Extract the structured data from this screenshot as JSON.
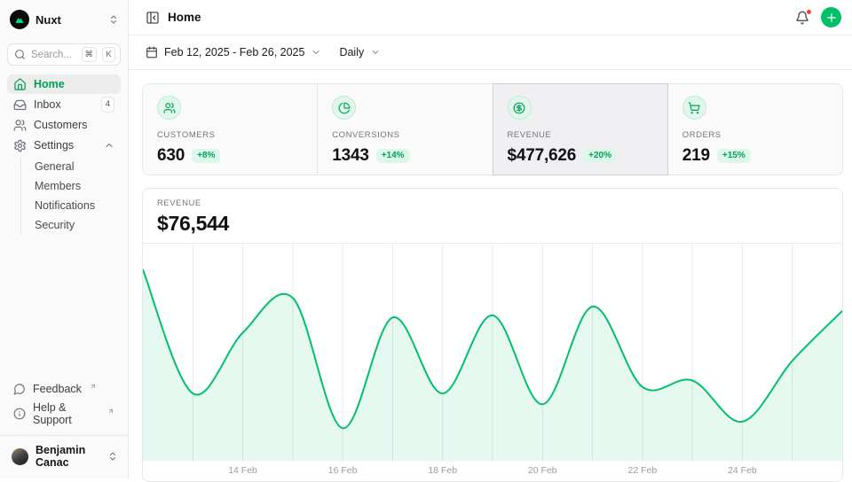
{
  "sidebar": {
    "workspace_label": "Nuxt",
    "search": {
      "placeholder": "Search...",
      "kbd_cmd": "⌘",
      "kbd_k": "K"
    },
    "nav": {
      "home": "Home",
      "inbox": "Inbox",
      "inbox_badge": "4",
      "customers": "Customers",
      "settings": "Settings",
      "settings_children": {
        "general": "General",
        "members": "Members",
        "notifications": "Notifications",
        "security": "Security"
      }
    },
    "footer": {
      "feedback": "Feedback",
      "help": "Help & Support"
    },
    "user": {
      "name": "Benjamin Canac"
    }
  },
  "header": {
    "title": "Home"
  },
  "toolbar": {
    "date_range": "Feb 12, 2025 - Feb 26, 2025",
    "granularity": "Daily"
  },
  "stats": {
    "customers": {
      "label": "CUSTOMERS",
      "value": "630",
      "delta": "+8%",
      "icon": "users-icon"
    },
    "conversions": {
      "label": "CONVERSIONS",
      "value": "1343",
      "delta": "+14%",
      "icon": "pie-chart-icon"
    },
    "revenue": {
      "label": "REVENUE",
      "value": "$477,626",
      "delta": "+20%",
      "icon": "circle-dollar-icon",
      "highlighted": true
    },
    "orders": {
      "label": "ORDERS",
      "value": "219",
      "delta": "+15%",
      "icon": "shopping-cart-icon"
    }
  },
  "chart_data": {
    "type": "area",
    "title": "REVENUE",
    "displayed_total": "$76,544",
    "x": [
      "12 Feb",
      "13 Feb",
      "14 Feb",
      "15 Feb",
      "16 Feb",
      "17 Feb",
      "18 Feb",
      "19 Feb",
      "20 Feb",
      "21 Feb",
      "22 Feb",
      "23 Feb",
      "24 Feb",
      "25 Feb",
      "26 Feb"
    ],
    "values_relative_pct": [
      88,
      31,
      59,
      75,
      15,
      66,
      31,
      67,
      26,
      71,
      34,
      37,
      18,
      46,
      69
    ],
    "y_axis_labels": "none shown (values estimated as % of plot height)",
    "x_tick_labels": [
      "14 Feb",
      "16 Feb",
      "18 Feb",
      "20 Feb",
      "22 Feb",
      "24 Feb"
    ],
    "grid": "vertical line per day",
    "legend": "none",
    "line_color": "#00c16a",
    "fill_color": "rgba(0,193,106,0.10)",
    "grid_color": "#e9e9eb"
  },
  "colors": {
    "primary": "#00c16a",
    "primary_dark_text": "#00a155",
    "badge_bg": "#ddf7e9",
    "border": "#e7e7e9",
    "sidebar_bg": "#fafafa",
    "muted_text": "#71717a",
    "notification_dot": "#f43f3f"
  }
}
